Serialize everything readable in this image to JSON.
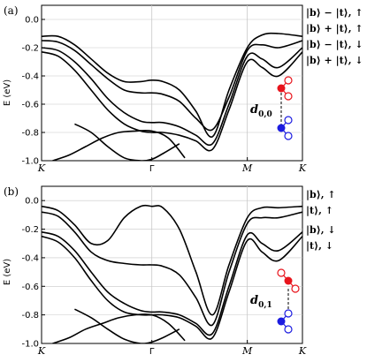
{
  "chart_data": [
    {
      "type": "line",
      "panel_label": "(a)",
      "ylabel": "E (eV)",
      "ylim": [
        -1.0,
        0.1
      ],
      "y_ticks": [
        "0.0",
        "-0.2",
        "-0.4",
        "-0.6",
        "-0.8",
        "-1.0"
      ],
      "x_ticks": [
        "K",
        "Γ",
        "M",
        "K"
      ],
      "x_tick_positions": [
        0,
        1,
        1.866,
        2.366
      ],
      "legend": [
        "|b⟩ − |t⟩, ↑",
        "|b⟩ + |t⟩, ↑",
        "|b⟩ − |t⟩, ↓",
        "|b⟩ + |t⟩, ↓"
      ],
      "inset_label": "d",
      "inset_subscript": "0,0",
      "colors": {
        "line": "#000000",
        "spin_up": "#e8141c",
        "spin_down": "#1c1ce0",
        "grid": "#c8c8c8"
      },
      "series": [
        {
          "x": [
            0,
            0.15,
            0.3,
            0.45,
            0.6,
            0.75,
            0.9,
            1.0,
            1.1,
            1.25,
            1.4,
            1.55,
            1.7,
            1.866,
            2.0,
            2.15,
            2.366
          ],
          "y": [
            -0.12,
            -0.12,
            -0.18,
            -0.28,
            -0.38,
            -0.44,
            -0.44,
            -0.43,
            -0.44,
            -0.5,
            -0.65,
            -0.83,
            -0.5,
            -0.2,
            -0.11,
            -0.1,
            -0.12
          ]
        },
        {
          "x": [
            0,
            0.15,
            0.3,
            0.45,
            0.6,
            0.75,
            0.9,
            1.0,
            1.1,
            1.25,
            1.4,
            1.55,
            1.7,
            1.866,
            2.0,
            2.15,
            2.366
          ],
          "y": [
            -0.15,
            -0.16,
            -0.22,
            -0.32,
            -0.42,
            -0.5,
            -0.52,
            -0.52,
            -0.53,
            -0.58,
            -0.7,
            -0.78,
            -0.55,
            -0.22,
            -0.18,
            -0.2,
            -0.15
          ]
        },
        {
          "x": [
            0,
            0.15,
            0.3,
            0.45,
            0.6,
            0.75,
            0.9,
            1.0,
            1.1,
            1.25,
            1.4,
            1.55,
            1.7,
            1.866,
            2.0,
            2.15,
            2.366
          ],
          "y": [
            -0.2,
            -0.22,
            -0.3,
            -0.42,
            -0.56,
            -0.66,
            -0.72,
            -0.73,
            -0.73,
            -0.76,
            -0.82,
            -0.88,
            -0.6,
            -0.26,
            -0.28,
            -0.34,
            -0.2
          ]
        },
        {
          "x": [
            0,
            0.15,
            0.3,
            0.45,
            0.6,
            0.75,
            0.9,
            1.0,
            1.1,
            1.25,
            1.4,
            1.55,
            1.7,
            1.866,
            2.0,
            2.15,
            2.366
          ],
          "y": [
            -0.23,
            -0.26,
            -0.36,
            -0.5,
            -0.64,
            -0.74,
            -0.79,
            -0.8,
            -0.8,
            -0.82,
            -0.86,
            -0.92,
            -0.64,
            -0.3,
            -0.34,
            -0.4,
            -0.23
          ]
        },
        {
          "x": [
            0.1,
            0.25,
            0.4,
            0.55,
            0.7,
            0.85,
            1.0,
            1.15,
            1.3
          ],
          "y": [
            -1.0,
            -0.96,
            -0.9,
            -0.84,
            -0.8,
            -0.79,
            -0.79,
            -0.84,
            -0.98
          ]
        },
        {
          "x": [
            0.3,
            0.45,
            0.6,
            0.75,
            0.9,
            1.0,
            1.1,
            1.25
          ],
          "y": [
            -0.74,
            -0.8,
            -0.9,
            -0.98,
            -1.0,
            -0.99,
            -0.95,
            -0.88
          ]
        }
      ]
    },
    {
      "type": "line",
      "panel_label": "(b)",
      "ylabel": "E (eV)",
      "ylim": [
        -1.0,
        0.1
      ],
      "y_ticks": [
        "0.0",
        "-0.2",
        "-0.4",
        "-0.6",
        "-0.8",
        "-1.0"
      ],
      "x_ticks": [
        "K",
        "Γ",
        "M",
        "K"
      ],
      "x_tick_positions": [
        0,
        1,
        1.866,
        2.366
      ],
      "legend": [
        "|b⟩, ↑",
        "|t⟩, ↑",
        "|b⟩, ↓",
        "|t⟩, ↓"
      ],
      "inset_label": "d",
      "inset_subscript": "0,1",
      "colors": {
        "line": "#000000",
        "spin_up": "#e8141c",
        "spin_down": "#1c1ce0",
        "grid": "#c8c8c8"
      },
      "series": [
        {
          "x": [
            0,
            0.15,
            0.3,
            0.45,
            0.6,
            0.75,
            0.9,
            1.0,
            1.1,
            1.25,
            1.4,
            1.55,
            1.7,
            1.866,
            2.0,
            2.15,
            2.366
          ],
          "y": [
            -0.04,
            -0.07,
            -0.17,
            -0.3,
            -0.28,
            -0.12,
            -0.04,
            -0.04,
            -0.05,
            -0.2,
            -0.5,
            -0.8,
            -0.45,
            -0.12,
            -0.05,
            -0.05,
            -0.04
          ]
        },
        {
          "x": [
            0,
            0.15,
            0.3,
            0.45,
            0.6,
            0.75,
            0.9,
            1.0,
            1.1,
            1.25,
            1.4,
            1.55,
            1.7,
            1.866,
            2.0,
            2.15,
            2.366
          ],
          "y": [
            -0.08,
            -0.11,
            -0.22,
            -0.36,
            -0.42,
            -0.44,
            -0.45,
            -0.45,
            -0.46,
            -0.52,
            -0.68,
            -0.87,
            -0.5,
            -0.16,
            -0.12,
            -0.12,
            -0.08
          ]
        },
        {
          "x": [
            0,
            0.15,
            0.3,
            0.45,
            0.6,
            0.75,
            0.9,
            1.0,
            1.1,
            1.25,
            1.4,
            1.55,
            1.7,
            1.866,
            2.0,
            2.15,
            2.366
          ],
          "y": [
            -0.22,
            -0.25,
            -0.35,
            -0.5,
            -0.64,
            -0.72,
            -0.77,
            -0.78,
            -0.78,
            -0.8,
            -0.86,
            -0.93,
            -0.6,
            -0.24,
            -0.3,
            -0.35,
            -0.22
          ]
        },
        {
          "x": [
            0,
            0.15,
            0.3,
            0.45,
            0.6,
            0.75,
            0.9,
            1.0,
            1.1,
            1.25,
            1.4,
            1.55,
            1.7,
            1.866,
            2.0,
            2.15,
            2.366
          ],
          "y": [
            -0.25,
            -0.29,
            -0.4,
            -0.56,
            -0.7,
            -0.78,
            -0.8,
            -0.8,
            -0.8,
            -0.82,
            -0.88,
            -0.96,
            -0.64,
            -0.28,
            -0.36,
            -0.42,
            -0.25
          ]
        },
        {
          "x": [
            0.1,
            0.25,
            0.4,
            0.55,
            0.7,
            0.85,
            1.0,
            1.15,
            1.3
          ],
          "y": [
            -1.0,
            -0.96,
            -0.9,
            -0.86,
            -0.82,
            -0.8,
            -0.8,
            -0.86,
            -0.98
          ]
        },
        {
          "x": [
            0.3,
            0.45,
            0.6,
            0.75,
            0.9,
            1.0,
            1.1,
            1.25
          ],
          "y": [
            -0.76,
            -0.82,
            -0.9,
            -0.97,
            -1.0,
            -0.99,
            -0.96,
            -0.9
          ]
        }
      ]
    }
  ]
}
